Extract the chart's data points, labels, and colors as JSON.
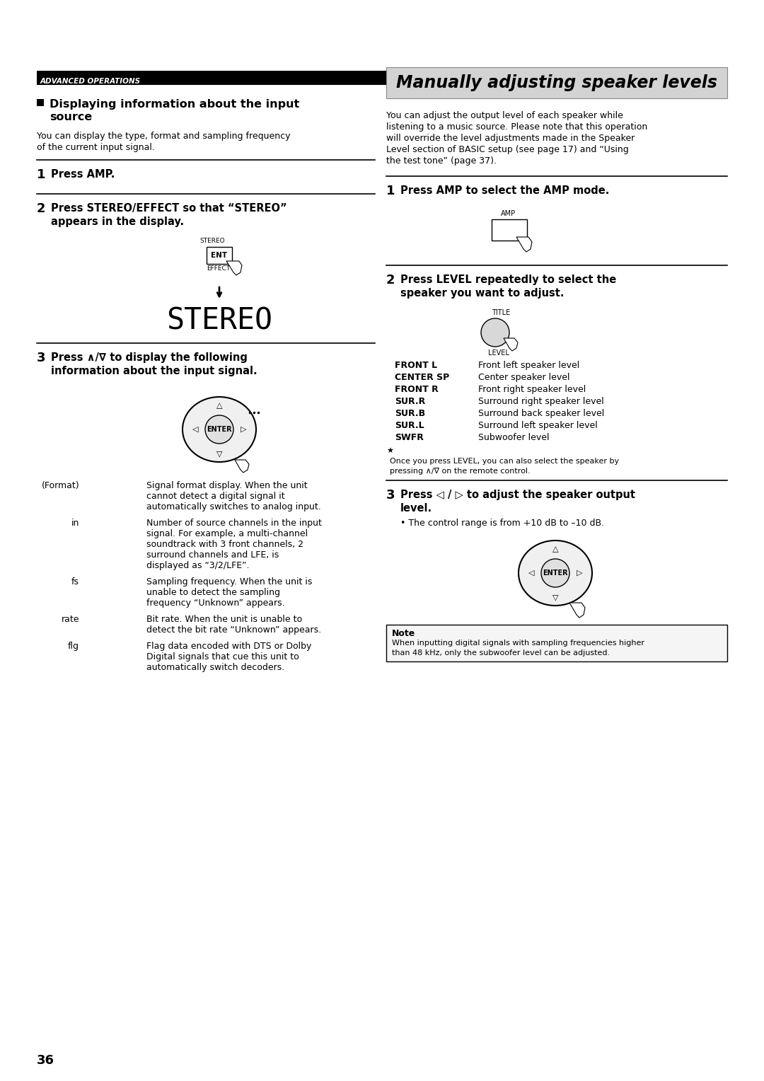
{
  "page_number": "36",
  "header_text": "ADVANCED OPERATIONS",
  "bg_color": "#ffffff",
  "left_section": {
    "title_line1": "Displaying information about the input",
    "title_line2": "source",
    "intro_line1": "You can display the type, format and sampling frequency",
    "intro_line2": "of the current input signal.",
    "step1_text": "Press AMP.",
    "step2_line1": "Press STEREO/EFFECT so that “STEREO”",
    "step2_line2": "appears in the display.",
    "step3_line1": "Press ∧/∇ to display the following",
    "step3_line2": "information about the input signal.",
    "table": [
      [
        "(Format)",
        "Signal format display. When the unit",
        "cannot detect a digital signal it",
        "automatically switches to analog input."
      ],
      [
        "in",
        "Number of source channels in the input",
        "signal. For example, a multi-channel",
        "soundtrack with 3 front channels, 2",
        "surround channels and LFE, is",
        "displayed as “3/2/LFE”."
      ],
      [
        "fs",
        "Sampling frequency. When the unit is",
        "unable to detect the sampling",
        "frequency “Unknown” appears."
      ],
      [
        "rate",
        "Bit rate. When the unit is unable to",
        "detect the bit rate “Unknown” appears."
      ],
      [
        "flg",
        "Flag data encoded with DTS or Dolby",
        "Digital signals that cue this unit to",
        "automatically switch decoders."
      ]
    ]
  },
  "right_section": {
    "title_box_text": "Manually adjusting speaker levels",
    "title_box_bg": "#d3d3d3",
    "intro": [
      "You can adjust the output level of each speaker while",
      "listening to a music source. Please note that this operation",
      "will override the level adjustments made in the Speaker",
      "Level section of BASIC setup (see page 17) and “Using",
      "the test tone” (page 37)."
    ],
    "step1_text": "Press AMP to select the AMP mode.",
    "step2_line1": "Press LEVEL repeatedly to select the",
    "step2_line2": "speaker you want to adjust.",
    "speaker_table": [
      [
        "FRONT L",
        "Front left speaker level"
      ],
      [
        "CENTER SP",
        "Center speaker level"
      ],
      [
        "FRONT R",
        "Front right speaker level"
      ],
      [
        "SUR.R",
        "Surround right speaker level"
      ],
      [
        "SUR.B",
        "Surround back speaker level"
      ],
      [
        "SUR.L",
        "Surround left speaker level"
      ],
      [
        "SWFR",
        "Subwoofer level"
      ]
    ],
    "level_note1": "Once you press LEVEL, you can also select the speaker by",
    "level_note2": "pressing ∧/∇ on the remote control.",
    "step3_line1": "Press ◁ / ▷ to adjust the speaker output",
    "step3_line2": "level.",
    "control_note": "• The control range is from +10 dB to –10 dB.",
    "note_box_title": "Note",
    "note_line1": "When inputting digital signals with sampling frequencies higher",
    "note_line2": "than 48 kHz, only the subwoofer level can be adjusted."
  }
}
